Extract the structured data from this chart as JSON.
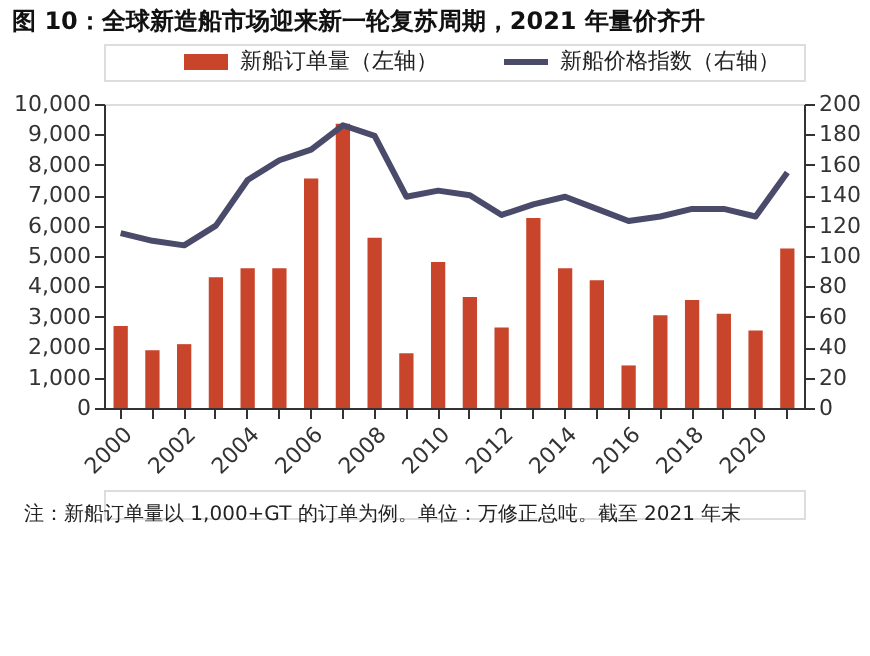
{
  "chart_data": {
    "type": "bar",
    "title": "图 10：全球新造船市场迎来新一轮复苏周期，2021 年量价齐升",
    "categories": [
      "2000",
      null,
      "2002",
      null,
      "2004",
      null,
      "2006",
      null,
      "2008",
      null,
      "2010",
      null,
      "2012",
      null,
      "2014",
      null,
      "2016",
      null,
      "2018",
      null,
      "2020",
      null
    ],
    "series": [
      {
        "name": "新船订单量（左轴）",
        "color": "#c8442a",
        "values": [
          2700,
          1900,
          2100,
          4300,
          4600,
          4600,
          7550,
          9350,
          5600,
          1800,
          4800,
          3650,
          2650,
          6250,
          4600,
          4200,
          1400,
          3050,
          3550,
          3100,
          2550,
          5250
        ]
      },
      {
        "name": "新船价格指数（右轴）",
        "type": "line",
        "axis": "y2",
        "color": "#4a4a6a",
        "values": [
          115,
          110,
          107,
          120,
          150,
          163,
          170,
          186,
          179,
          139,
          143,
          140,
          127,
          134,
          139,
          131,
          123,
          126,
          131,
          131,
          126,
          155
        ]
      }
    ],
    "ylim": [
      0,
      10000
    ],
    "yticks": [
      {
        "value": 0,
        "label": "0"
      },
      {
        "value": 1000,
        "label": "1,000"
      },
      {
        "value": 2000,
        "label": "2,000"
      },
      {
        "value": 3000,
        "label": "3,000"
      },
      {
        "value": 4000,
        "label": "4,000"
      },
      {
        "value": 5000,
        "label": "5,000"
      },
      {
        "value": 6000,
        "label": "6,000"
      },
      {
        "value": 7000,
        "label": "7,000"
      },
      {
        "value": 8000,
        "label": "8,000"
      },
      {
        "value": 9000,
        "label": "9,000"
      },
      {
        "value": 10000,
        "label": "10,000"
      }
    ],
    "y2lim": [
      0,
      200
    ],
    "y2ticks": [
      0,
      20,
      40,
      60,
      80,
      100,
      120,
      140,
      160,
      180,
      200
    ],
    "legend": "top",
    "grid": false,
    "annotations": [
      "注：新船订单量以 1,000+GT 的订单为例。单位：万修正总吨。截至 2021 年末"
    ]
  }
}
